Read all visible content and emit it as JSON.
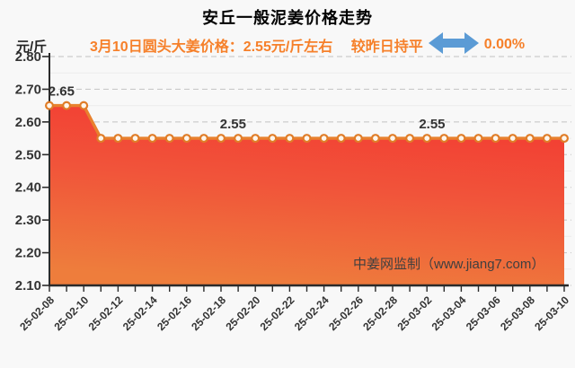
{
  "header": {
    "title": "安丘一般泥姜价格走势",
    "unit_label": "元/斤",
    "subtitle": "3月10日圆头大姜价格：2.55元/斤左右　 较昨日持平",
    "change_percent": "0.00%",
    "trend_icon": "double-headed-horizontal-arrow"
  },
  "watermark": "中姜网监制（www.jiang7.com）",
  "colors": {
    "accent_orange": "#f6802a",
    "arrow_blue": "#5b9bd5",
    "line": "#e8812e",
    "marker_ring": "#e07d28",
    "marker_fill": "#fef6ec",
    "area_top": "#f23b32",
    "area_mid": "#f1543a",
    "area_bottom": "#ee7d3c",
    "axis": "#2b2b2b",
    "grid_major": "#c2c2c2",
    "grid_minor": "#ececec",
    "text_dark": "#333333",
    "watermark_text": "#3f3f3f"
  },
  "chart_data": {
    "type": "area",
    "title": "安丘一般泥姜价格走势",
    "ylabel": "元/斤",
    "ylim": [
      2.1,
      2.8
    ],
    "ytick_step": 0.1,
    "yticks": [
      "2.80",
      "2.70",
      "2.60",
      "2.50",
      "2.40",
      "2.30",
      "2.20",
      "2.10"
    ],
    "grid": "horizontal-dashed-major-solid-minor",
    "legend": null,
    "xtick_label_interval": 2,
    "x": [
      "25-02-08",
      "25-02-09",
      "25-02-10",
      "25-02-11",
      "25-02-12",
      "25-02-13",
      "25-02-14",
      "25-02-15",
      "25-02-16",
      "25-02-17",
      "25-02-18",
      "25-02-19",
      "25-02-20",
      "25-02-21",
      "25-02-22",
      "25-02-23",
      "25-02-24",
      "25-02-25",
      "25-02-26",
      "25-02-27",
      "25-02-28",
      "25-03-01",
      "25-03-02",
      "25-03-03",
      "25-03-04",
      "25-03-05",
      "25-03-06",
      "25-03-07",
      "25-03-08",
      "25-03-09",
      "25-03-10"
    ],
    "values": [
      2.65,
      2.65,
      2.65,
      2.55,
      2.55,
      2.55,
      2.55,
      2.55,
      2.55,
      2.55,
      2.55,
      2.55,
      2.55,
      2.55,
      2.55,
      2.55,
      2.55,
      2.55,
      2.55,
      2.55,
      2.55,
      2.55,
      2.55,
      2.55,
      2.55,
      2.55,
      2.55,
      2.55,
      2.55,
      2.55,
      2.55
    ],
    "point_labels": [
      {
        "text": "2.65",
        "at_index": 0.7
      },
      {
        "text": "2.55",
        "at_index": 10.7
      },
      {
        "text": "2.55",
        "at_index": 22.3
      }
    ]
  }
}
